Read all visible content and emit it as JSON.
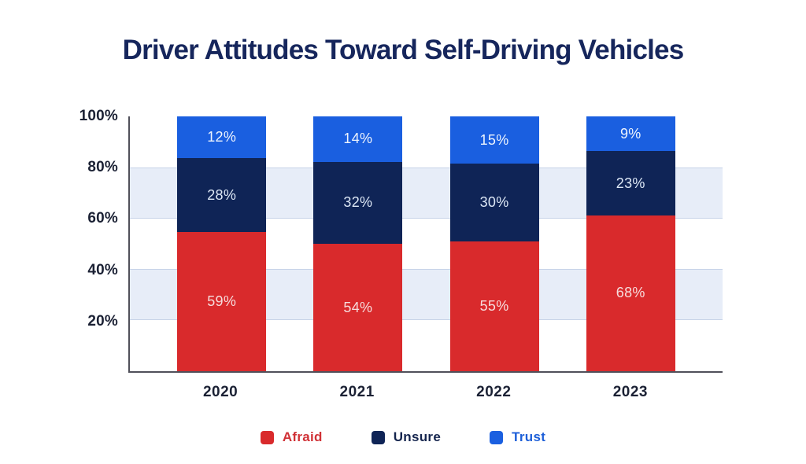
{
  "title": "Driver Attitudes Toward Self-Driving Vehicles",
  "chart_data": {
    "type": "bar",
    "stacked": true,
    "title": "Driver Attitudes Toward Self-Driving Vehicles",
    "categories": [
      "2020",
      "2021",
      "2022",
      "2023"
    ],
    "series": [
      {
        "name": "Afraid",
        "values": [
          59,
          54,
          55,
          68
        ],
        "color": "#d92a2c",
        "value_label_color": "#f6dcdc",
        "legend_text_color": "#d03136"
      },
      {
        "name": "Unsure",
        "values": [
          28,
          32,
          30,
          23
        ],
        "color": "#0f2456",
        "value_label_color": "#dde8f6",
        "legend_text_color": "#15254e"
      },
      {
        "name": "Trust",
        "values": [
          12,
          14,
          15,
          9
        ],
        "color": "#1a5fe0",
        "value_label_color": "#eef4fd",
        "legend_text_color": "#1c5ed8"
      }
    ],
    "value_suffix": "%",
    "yticks": [
      "100%",
      "80%",
      "60%",
      "40%",
      "20%"
    ],
    "ylim": [
      0,
      100
    ],
    "background_bands_pct": [
      [
        60,
        80
      ],
      [
        20,
        40
      ]
    ],
    "grid": "horizontal-band-edges",
    "legend_position": "bottom",
    "colors": {
      "title": "#16265c",
      "axis_line": "#50505a",
      "tick_text": "#1b2134",
      "band_fill": "#e7edf8",
      "band_edge": "#c7d3e8",
      "background": "#ffffff"
    }
  }
}
